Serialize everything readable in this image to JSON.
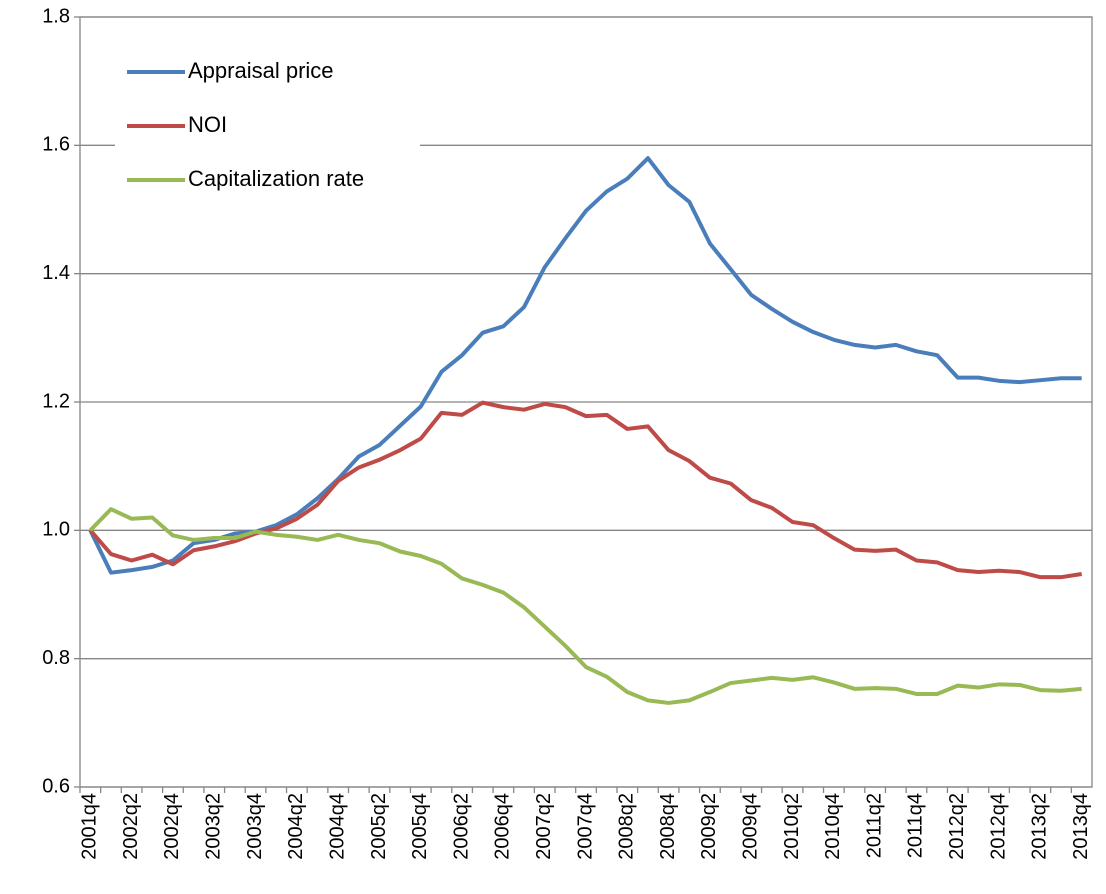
{
  "chart_data": {
    "type": "line",
    "categories": [
      "2001q4",
      null,
      "2002q2",
      null,
      "2002q4",
      null,
      "2003q2",
      null,
      "2003q4",
      null,
      "2004q2",
      null,
      "2004q4",
      null,
      "2005q2",
      null,
      "2005q4",
      null,
      "2006q2",
      null,
      "2006q4",
      null,
      "2007q2",
      null,
      "2007q4",
      null,
      "2008q2",
      null,
      "2008q4",
      null,
      "2009q2",
      null,
      "2009q4",
      null,
      "2010q2",
      null,
      "2010q4",
      null,
      "2011q2",
      null,
      "2011q4",
      null,
      "2012q2",
      null,
      "2012q4",
      null,
      "2013q2",
      null,
      "2013q4"
    ],
    "series": [
      {
        "name": "Appraisal price",
        "color": "#4a7ebb",
        "values": [
          1.0,
          0.934,
          0.938,
          0.943,
          0.953,
          0.98,
          0.985,
          0.995,
          0.998,
          1.008,
          1.025,
          1.05,
          1.08,
          1.115,
          1.133,
          1.163,
          1.193,
          1.247,
          1.273,
          1.308,
          1.318,
          1.348,
          1.41,
          1.455,
          1.498,
          1.528,
          1.548,
          1.58,
          1.538,
          1.512,
          1.447,
          1.407,
          1.367,
          1.345,
          1.325,
          1.309,
          1.297,
          1.289,
          1.285,
          1.289,
          1.279,
          1.273,
          1.238,
          1.238,
          1.233,
          1.231,
          1.234,
          1.237,
          1.237
        ]
      },
      {
        "name": "NOI",
        "color": "#be4b48",
        "values": [
          1.0,
          0.963,
          0.953,
          0.962,
          0.947,
          0.969,
          0.975,
          0.983,
          0.995,
          1.003,
          1.018,
          1.04,
          1.077,
          1.098,
          1.11,
          1.125,
          1.143,
          1.183,
          1.18,
          1.199,
          1.192,
          1.188,
          1.197,
          1.192,
          1.178,
          1.18,
          1.158,
          1.162,
          1.125,
          1.108,
          1.082,
          1.073,
          1.047,
          1.035,
          1.013,
          1.008,
          0.988,
          0.97,
          0.968,
          0.97,
          0.953,
          0.95,
          0.938,
          0.935,
          0.937,
          0.935,
          0.927,
          0.927,
          0.932
        ]
      },
      {
        "name": "Capitalization rate",
        "color": "#98b954",
        "values": [
          1.0,
          1.033,
          1.018,
          1.02,
          0.992,
          0.985,
          0.988,
          0.988,
          0.998,
          0.993,
          0.99,
          0.985,
          0.993,
          0.985,
          0.98,
          0.967,
          0.96,
          0.948,
          0.925,
          0.915,
          0.903,
          0.88,
          0.85,
          0.82,
          0.787,
          0.772,
          0.748,
          0.735,
          0.731,
          0.735,
          0.748,
          0.762,
          0.766,
          0.77,
          0.767,
          0.771,
          0.763,
          0.753,
          0.754,
          0.753,
          0.745,
          0.745,
          0.758,
          0.755,
          0.76,
          0.759,
          0.751,
          0.75,
          0.753
        ]
      }
    ],
    "ylim": [
      0.6,
      1.8
    ],
    "yticks": [
      0.6,
      0.8,
      {
        "value": 1.0,
        "label": "1.0"
      },
      1.2,
      1.4,
      1.6,
      1.8
    ],
    "grid": true,
    "legend": "upper left"
  }
}
